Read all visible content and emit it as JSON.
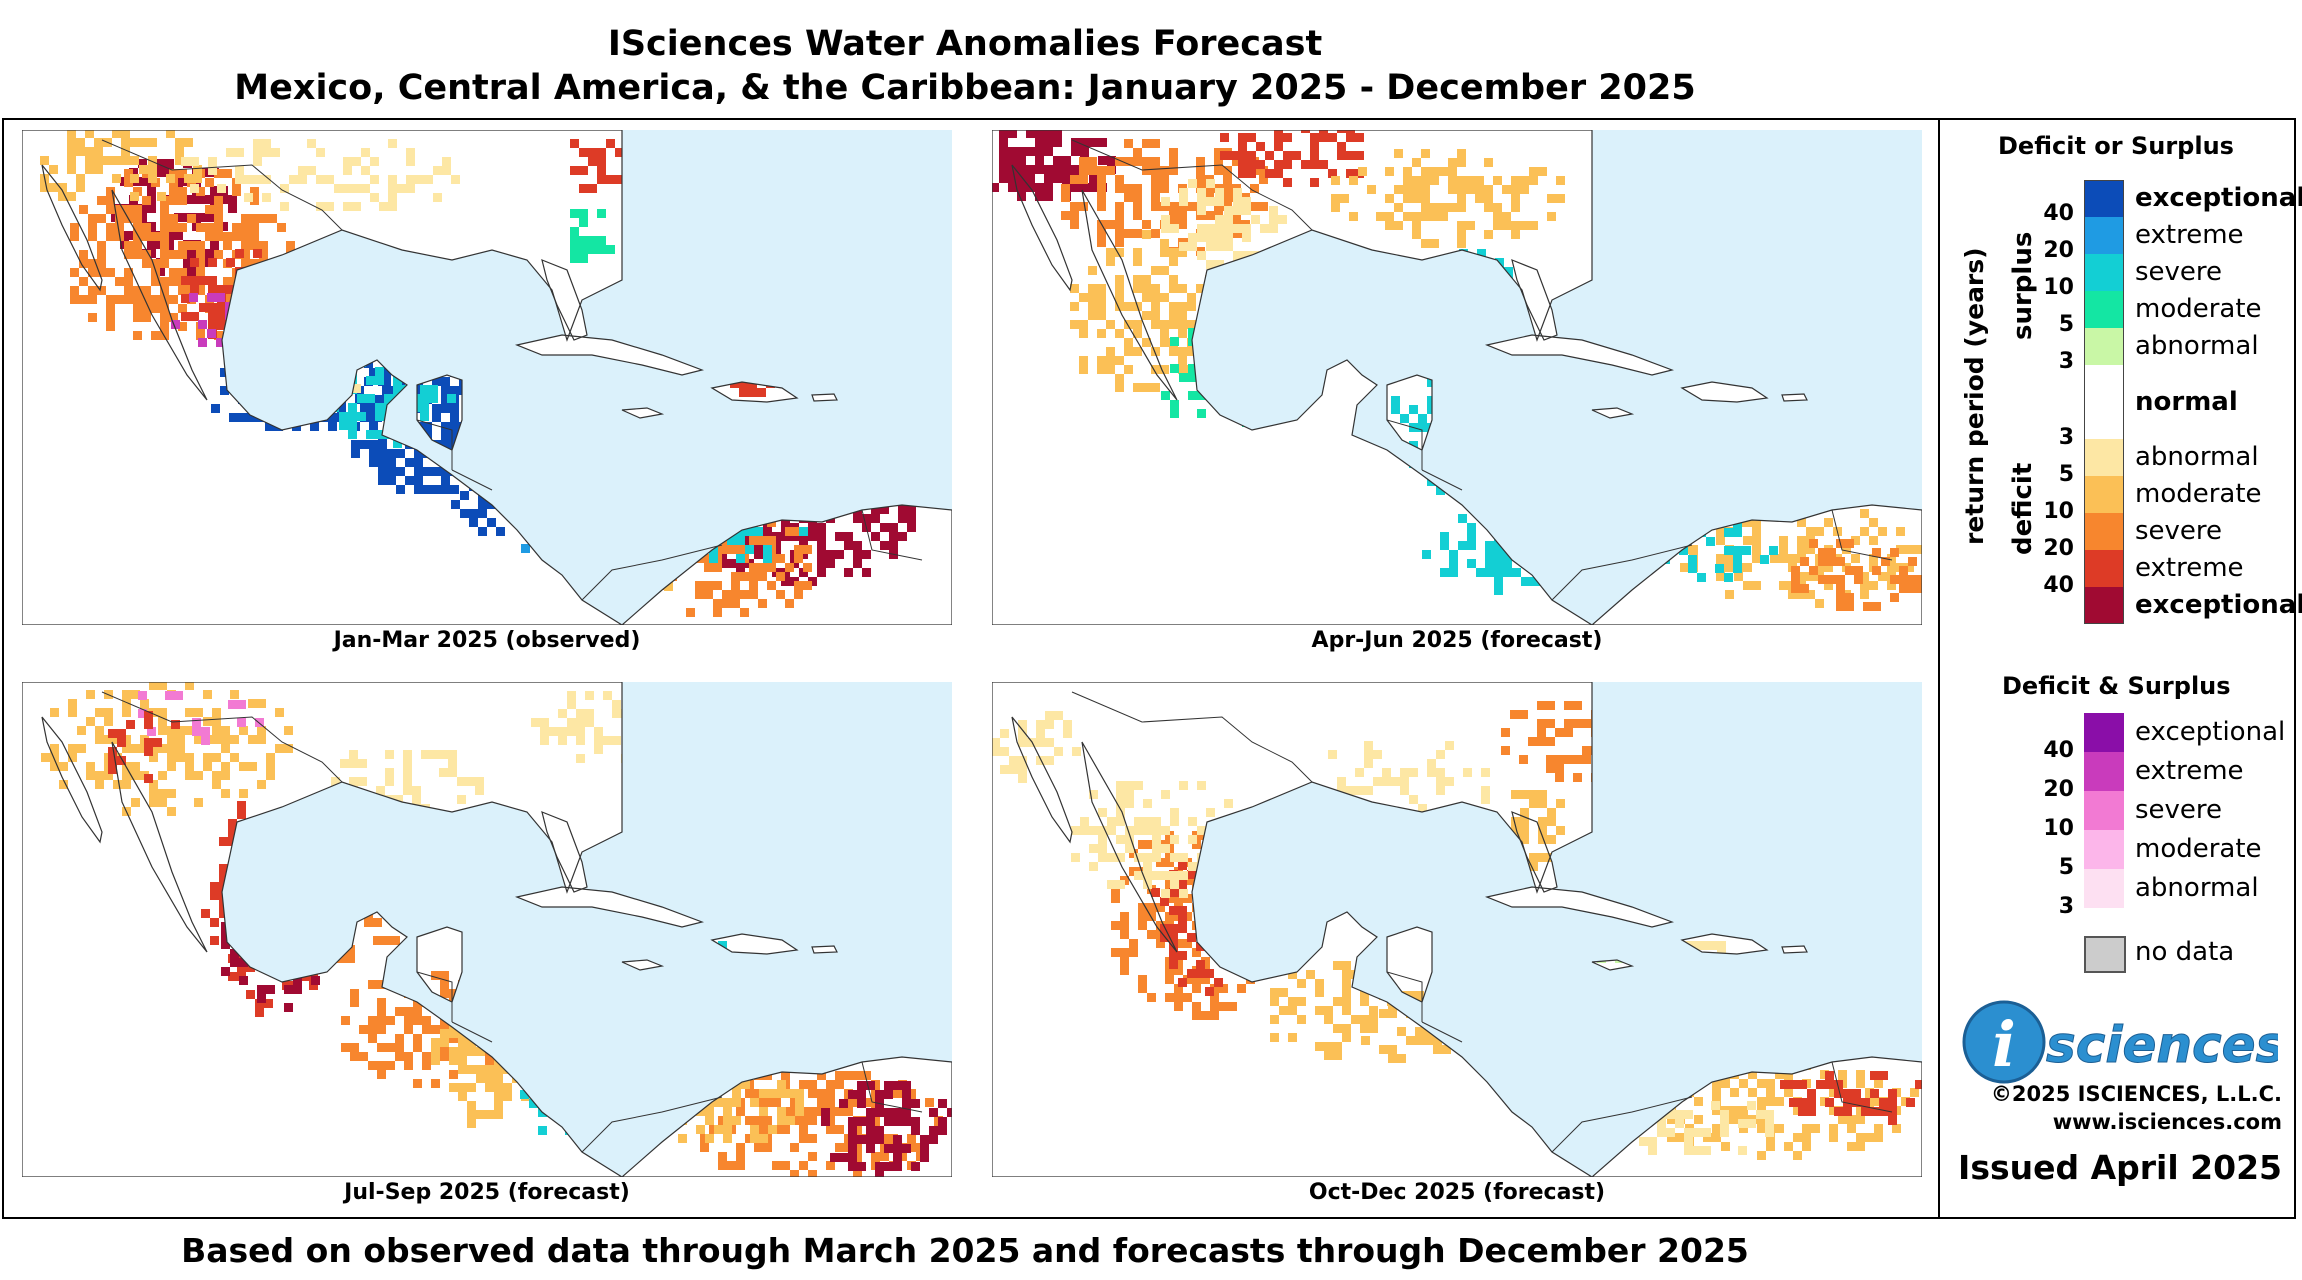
{
  "title": {
    "line1": "ISciences Water Anomalies Forecast",
    "line2": "Mexico, Central America, & the Caribbean: January 2025 - December 2025"
  },
  "panels": [
    {
      "caption": "Jan-Mar 2025 (observed)",
      "scene": "janmar"
    },
    {
      "caption": "Apr-Jun 2025 (forecast)",
      "scene": "aprjun"
    },
    {
      "caption": "Jul-Sep 2025 (forecast)",
      "scene": "julsep"
    },
    {
      "caption": "Oct-Dec 2025 (forecast)",
      "scene": "octdec"
    }
  ],
  "footer": "Based on observed data through March 2025 and forecasts through December 2025",
  "legend": {
    "deficit_or_surplus_title": "Deficit or Surplus",
    "axis_label": "return period (years)",
    "surplus_label": "surplus",
    "deficit_label": "deficit",
    "surplus_items": [
      {
        "label": "exceptional",
        "color": "#0c4cb8",
        "bold": true
      },
      {
        "label": "extreme",
        "color": "#1f9be3",
        "bold": false
      },
      {
        "label": "severe",
        "color": "#13cfd4",
        "bold": false
      },
      {
        "label": "moderate",
        "color": "#14e6a3",
        "bold": false
      },
      {
        "label": "abnormal",
        "color": "#c9f7a6",
        "bold": false
      }
    ],
    "normal": {
      "label": "normal",
      "color": "#ffffff"
    },
    "deficit_items": [
      {
        "label": "abnormal",
        "color": "#fde7a4",
        "bold": false
      },
      {
        "label": "moderate",
        "color": "#fbc056",
        "bold": false
      },
      {
        "label": "severe",
        "color": "#f7862e",
        "bold": false
      },
      {
        "label": "extreme",
        "color": "#dd3b26",
        "bold": false
      },
      {
        "label": "exceptional",
        "color": "#a00a32",
        "bold": true
      }
    ],
    "surplus_periods": [
      "40",
      "20",
      "10",
      "5",
      "3"
    ],
    "deficit_periods": [
      "3",
      "5",
      "10",
      "20",
      "40"
    ],
    "both_title": "Deficit & Surplus",
    "both_items": [
      {
        "label": "exceptional",
        "color": "#8a0ea8"
      },
      {
        "label": "extreme",
        "color": "#c93bbc"
      },
      {
        "label": "severe",
        "color": "#f27ad3"
      },
      {
        "label": "moderate",
        "color": "#fcb6ea"
      },
      {
        "label": "abnormal",
        "color": "#fde0f2"
      }
    ],
    "both_periods": [
      "40",
      "20",
      "10",
      "5",
      "3"
    ],
    "no_data": {
      "label": "no data",
      "color": "#cccccc"
    }
  },
  "logo": {
    "letter": "i",
    "text": "sciences"
  },
  "copyright": "©2025 ISCIENCES, L.L.C.",
  "website": "www.isciences.com",
  "issued": "Issued April 2025",
  "colors": {
    "ocean": "#dbf1fb",
    "land": "#ffffff",
    "border": "#333333"
  }
}
